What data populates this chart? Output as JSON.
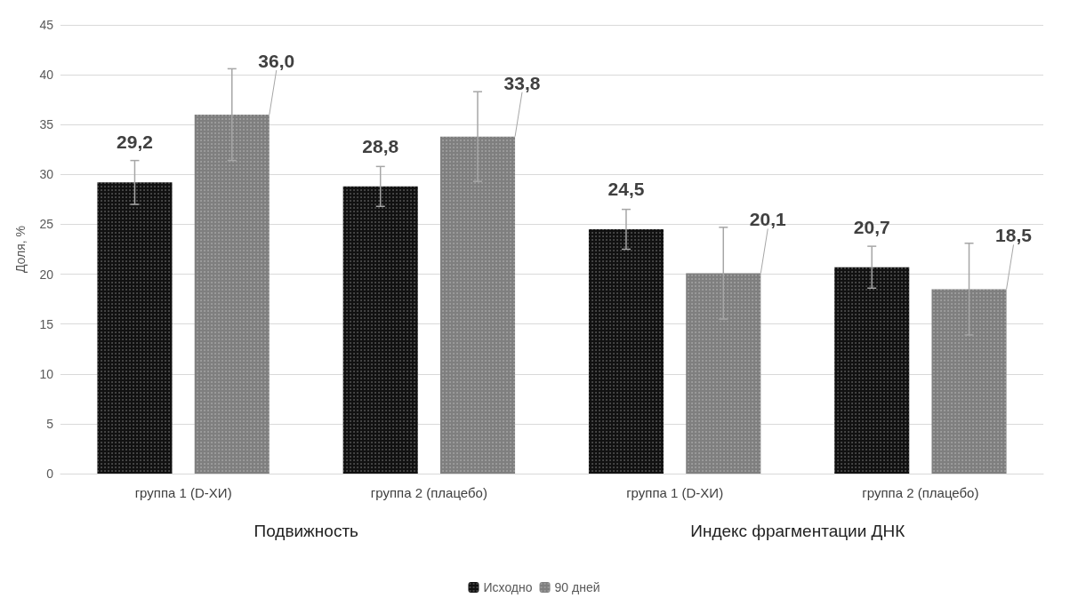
{
  "chart_data": {
    "type": "bar",
    "ylabel": "Доля, %",
    "categories": [
      "группа 1 (D-ХИ)",
      "группа 2 (плацебо)",
      "группа 1 (D-ХИ)",
      "группа 2 (плацебо)"
    ],
    "series": [
      {
        "name": "Исходно",
        "color": "#111111",
        "values": [
          29.2,
          28.8,
          24.5,
          20.7
        ],
        "value_labels": [
          "29,2",
          "28,8",
          "24,5",
          "20,7"
        ],
        "errors": [
          2.2,
          2,
          2,
          2.1
        ]
      },
      {
        "name": "90 дней",
        "color": "#7f7f7f",
        "values": [
          36.0,
          33.8,
          20.1,
          18.5
        ],
        "value_labels": [
          "36,0",
          "33,8",
          "20,1",
          "18,5"
        ],
        "errors": [
          4.6,
          4.5,
          4.6,
          4.6
        ]
      }
    ],
    "ylim": [
      0,
      45
    ],
    "yticks": [
      0,
      5,
      10,
      15,
      20,
      25,
      30,
      35,
      40,
      45
    ],
    "grid": "y",
    "legend": "bottom",
    "annotations": [
      "Подвижность",
      "Индекс фрагментации ДНК"
    ]
  }
}
